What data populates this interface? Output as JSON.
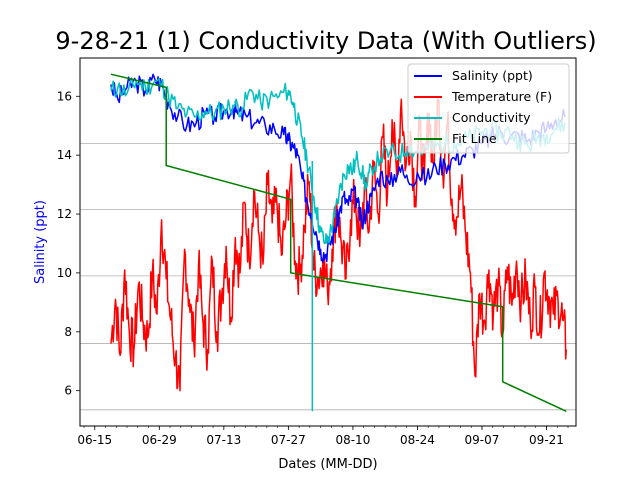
{
  "chart_data": {
    "type": "line",
    "title": "9-28-21 (1) Conductivity Data (With Outliers)",
    "xlabel": "Dates (MM-DD)",
    "ylabel": "Salinity (ppt)",
    "ylabel_color": "#0000ff",
    "x_ticks": [
      "06-15",
      "06-29",
      "07-13",
      "07-27",
      "08-10",
      "08-24",
      "09-07",
      "09-21"
    ],
    "x_tick_days": [
      0,
      14,
      28,
      42,
      56,
      70,
      84,
      98
    ],
    "x_start_label": "06-15",
    "xlim_days": [
      -3.2,
      104.4
    ],
    "y_ticks": [
      6,
      8,
      10,
      12,
      14,
      16
    ],
    "ylim": [
      4.8,
      17.3
    ],
    "grid": "horizontal",
    "grid_y": [
      5.35,
      7.6,
      9.9,
      12.15,
      14.4
    ],
    "legend_position": "top-right",
    "series": [
      {
        "name": "Salinity (ppt)",
        "color": "#0000ff",
        "x": [
          3.5,
          5,
          7,
          9,
          11,
          13,
          14.5,
          16,
          18,
          20,
          22,
          24,
          26,
          28,
          30,
          31,
          33,
          35,
          37,
          39,
          41,
          42,
          43,
          44,
          45,
          46,
          47,
          48,
          49,
          50,
          51,
          52,
          53,
          54,
          55,
          56,
          57,
          58,
          59,
          60,
          62,
          64,
          66,
          68,
          70,
          72,
          74,
          76,
          78,
          80,
          82,
          84,
          86,
          88,
          90,
          92,
          94,
          96,
          98,
          100,
          102
        ],
        "y": [
          16.4,
          15.9,
          16.3,
          16.5,
          16.2,
          16.6,
          16.4,
          15.8,
          15.3,
          15.0,
          15.1,
          15.4,
          15.3,
          15.5,
          15.6,
          15.4,
          15.3,
          15.1,
          15.0,
          14.9,
          14.7,
          14.5,
          14.3,
          14.0,
          13.2,
          12.5,
          12.0,
          11.4,
          10.8,
          10.6,
          11.0,
          11.4,
          12.0,
          12.6,
          12.3,
          12.8,
          12.4,
          11.6,
          12.2,
          12.6,
          13.4,
          13.0,
          13.6,
          13.1,
          13.4,
          13.2,
          13.6,
          13.7,
          13.9,
          14.0,
          14.2,
          14.4,
          14.6,
          14.8,
          14.6,
          14.7,
          14.5,
          14.8,
          14.9,
          15.2,
          15.3
        ]
      },
      {
        "name": "Temperature (F)",
        "color": "#ff0000",
        "x": [
          3.5,
          4.5,
          5.5,
          6.5,
          7.5,
          8.5,
          9.5,
          10.5,
          11.5,
          12.5,
          13.5,
          14.5,
          15.5,
          16.5,
          17.5,
          18.5,
          19.5,
          20.5,
          21.5,
          22.5,
          23.5,
          24.5,
          25.5,
          26.5,
          27.5,
          28.5,
          29.5,
          30.5,
          31.5,
          32.5,
          33.5,
          34.5,
          35.5,
          36.5,
          37.5,
          38.5,
          39.5,
          40.5,
          41.5,
          42.5,
          43.5,
          44.5,
          45.5,
          46.5,
          47.5,
          48.5,
          49.5,
          50.5,
          51.5,
          52.5,
          53.5,
          54.5,
          55.5,
          56.5,
          57.5,
          58.5,
          59.5,
          60.5,
          61.5,
          62.5,
          63.5,
          64.5,
          65.5,
          66.5,
          67.5,
          68.5,
          69.5,
          70.5,
          71.5,
          72.5,
          73.5,
          74.5,
          75.5,
          76.5,
          77.5,
          78.5,
          79.5,
          80.5,
          81.5,
          82.5,
          83.5,
          84.5,
          85.5,
          86.5,
          87.5,
          88.5,
          89.5,
          90.5,
          91.5,
          92.5,
          93.5,
          94.5,
          95.5,
          96.5,
          97.5,
          98.5,
          99.5,
          100.5,
          101.5,
          102.3
        ],
        "y": [
          7.6,
          9.1,
          7.2,
          10.1,
          8.0,
          7.4,
          9.6,
          8.3,
          7.8,
          10.0,
          8.6,
          11.8,
          9.8,
          8.4,
          7.1,
          6.0,
          10.8,
          9.1,
          7.6,
          10.2,
          8.3,
          7.4,
          10.4,
          8.0,
          9.2,
          10.9,
          8.5,
          11.2,
          10.0,
          12.4,
          10.5,
          12.8,
          11.4,
          10.3,
          13.0,
          11.7,
          12.4,
          10.6,
          11.9,
          13.3,
          10.4,
          10.0,
          11.6,
          13.1,
          10.1,
          9.8,
          10.5,
          9.4,
          10.8,
          12.4,
          11.0,
          9.8,
          11.8,
          12.6,
          10.9,
          12.9,
          11.4,
          13.6,
          12.0,
          14.6,
          12.7,
          15.2,
          13.3,
          15.9,
          13.6,
          14.8,
          12.6,
          14.9,
          13.2,
          15.4,
          13.7,
          15.9,
          13.4,
          15.1,
          12.5,
          11.9,
          12.9,
          11.3,
          10.0,
          6.5,
          9.3,
          8.4,
          10.1,
          8.7,
          9.6,
          7.9,
          10.2,
          8.9,
          10.4,
          9.0,
          9.8,
          8.3,
          9.5,
          8.0,
          10.0,
          9.2,
          8.6,
          9.1,
          8.4,
          7.4
        ]
      },
      {
        "name": "Conductivity",
        "color": "#00bfbf",
        "x": [
          3.5,
          5,
          7,
          9,
          11,
          13,
          14.5,
          16,
          18,
          20,
          22,
          24,
          26,
          28,
          30,
          32,
          34,
          36,
          38,
          40,
          42,
          43,
          44,
          45,
          46,
          47,
          48,
          49,
          50,
          51,
          52,
          53,
          54,
          55,
          56,
          57,
          58,
          59,
          60,
          62,
          64,
          66,
          68,
          70,
          72,
          74,
          76,
          78,
          80,
          82,
          84,
          86,
          88,
          90,
          92,
          94,
          96,
          98,
          100,
          102
        ],
        "y": [
          16.2,
          16.3,
          16.1,
          16.5,
          16.3,
          16.5,
          16.4,
          16.0,
          15.6,
          15.4,
          15.3,
          15.5,
          15.4,
          15.6,
          15.7,
          15.6,
          16.2,
          15.8,
          15.9,
          16.0,
          16.2,
          15.8,
          15.2,
          14.6,
          13.9,
          13.0,
          12.2,
          11.4,
          11.0,
          11.3,
          11.9,
          12.7,
          13.3,
          13.6,
          13.5,
          13.9,
          13.4,
          12.9,
          13.6,
          13.9,
          14.1,
          14.0,
          14.3,
          14.1,
          14.2,
          14.3,
          14.4,
          14.4,
          14.5,
          14.6,
          14.8,
          14.9,
          14.7,
          14.8,
          14.5,
          14.3,
          14.6,
          14.7,
          14.9,
          15.1
        ]
      },
      {
        "name": "Fit Line",
        "color": "#008000",
        "x": [
          3.5,
          15.5,
          15.5,
          42.5,
          42.5,
          88.5,
          88.5,
          102.3
        ],
        "y": [
          16.75,
          16.3,
          13.65,
          12.5,
          10.0,
          8.85,
          6.3,
          5.3
        ]
      }
    ],
    "outlier_spike": {
      "series": "Conductivity",
      "x": 47.2,
      "y_low": 5.3
    }
  }
}
